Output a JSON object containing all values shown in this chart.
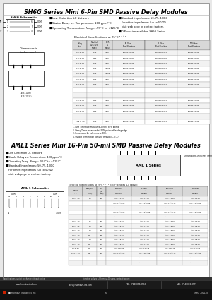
{
  "bg_color": "#ffffff",
  "title1": "SH6G Series Mini 6-Pin SMD Passive Delay Modules",
  "title2": "AML1 Series Mini 16-Pin 50-mil SMD Passive Delay Modules",
  "section1_bullets": [
    "Low Distortion LC Network",
    "Stable Delay vs. Temperature: 100 ppm/°C",
    "Operating Temperature Range: -55°C to +125°C"
  ],
  "section1_bullets2_line1": "Standard Impedances: 50, 75, 100 Ω",
  "section1_bullets2_line2": "For other impedances (up to 500Ω)",
  "section1_bullets2_line3": "visit web page or contact factory.",
  "section1_bullets2_line4": "DIP version available: SH6G Series",
  "section2_bullets": [
    "Low Distortion LC Network",
    "Stable Delay vs. Temperature: 100 ppm/°C",
    "Operating Temp. Range: -55°C to +125°C",
    "Standard Impedances: 50, 75, 100 Ω",
    "For other impedances (up to 500Ω)",
    "visit web page or contact factory."
  ],
  "sh6g_rows": [
    [
      "0.5 ± .20",
      "0.70",
      "<0.5",
      "SH6G2-01005",
      "SH6G2-01005T",
      "SH6G2-01005"
    ],
    [
      "1.0 ± .20",
      "0.80",
      "<0.5",
      "SH6G2-01010",
      "SH6G2-01010T",
      "SH6G2-01010"
    ],
    [
      "2.0 ± .20",
      "0.90",
      "<0.5",
      "SH6G2-02005",
      "SH6G2-02005T",
      "SH6G2-02005"
    ],
    [
      "2.5 ± .20",
      "1.00",
      "<0.60",
      "SH6G2-02505",
      "SH6G2-02505T",
      "SH6G2-02505"
    ],
    [
      "3.0 ± .30",
      "1.20",
      "<0.60",
      "SH6G2-03005",
      "SH6G2-03005T",
      "SH6G2-03005"
    ],
    [
      "4.0 ± .40",
      "1.50",
      "<4.5",
      "SH6G2-04005",
      "SH6G2-04005T",
      "SH6G2-04005"
    ],
    [
      "5.0 ± .40",
      "1.80",
      "<5.0",
      "SH6G2-07005",
      "SH6G2-07005T",
      "SH6G2-07005"
    ],
    [
      "6.0 ± .40",
      "2.00",
      "<5.5",
      "SH6G2-06005",
      "SH6G2-06005T",
      "SH6G2-06005"
    ],
    [
      "7.0 ± .40",
      "2.40",
      "<5.5",
      "SH6G2-07005",
      "SH6G2-07005T",
      "SH6G2-07005"
    ],
    [
      "7.5 ± .40",
      "2.60",
      "<6.8",
      "SH6G2-07505",
      "SH6G2-07505T",
      "SH6G2-07505"
    ],
    [
      "8.0 ± .40",
      "2.40",
      "<7.5",
      "SH6G2-08005",
      "SH6G2-08005T",
      "SH6G2-08005"
    ],
    [
      "9.0 ± .40",
      "2.80",
      "<7.5",
      "SH6G2-09005",
      "SH6G2-09005T",
      "SH6G2-09005"
    ],
    [
      "10.0 ± .40",
      "1.00",
      "<8.0",
      "SH6G2-10005",
      "SH6G2-10005T",
      "SH6G2-10005"
    ],
    [
      "12.5 ± .50",
      "2.10",
      "<8.5",
      "SH6G2-11005",
      "SH6G2-11005T",
      "SH6G2-11005"
    ]
  ],
  "aml1_rows": [
    [
      "1.0 ± .20",
      "1.0",
      "20",
      "AML 1-1-50",
      "AML 1-1-75",
      "AML 1-1-10",
      "AML 1-1-20"
    ],
    [
      "1.5 ± .20",
      "1.0",
      "30",
      "AML 1-1½S-50",
      "AML 1-1½S-75",
      "AML 1-1½S-10",
      "AML 1-1½S-20"
    ],
    [
      "2.0 ± .30",
      "1.0",
      "40",
      "AML 1-2-50",
      "AML 1-2-75",
      "AML 1-2-10",
      "AML 1-2-20"
    ],
    [
      "2.5 ± .20",
      "1.0",
      "50",
      "AML 1-2½S-50",
      "AML 1-2½S-75",
      "AML 1-2½S-10",
      "AML 1-2½S-20"
    ],
    [
      "3.0 ± .30",
      "1.7",
      "40",
      "AML 1-3-50",
      "AML 1-3-75",
      "AML 1-3-10",
      "AML 1-3-20"
    ],
    [
      "4.0 ± .30",
      "1.7",
      "70",
      "AML 1-4-50",
      "AML 1-4-75",
      "AML 1-4-10",
      "AML 1-4-20"
    ],
    [
      "5.0 ± .25",
      "1.8",
      "80",
      "AML 1-5-50",
      "AML 1-5-75",
      "AML 1-5-10",
      "AML 1-5-20"
    ],
    [
      "6.0 ± .30",
      "1.9",
      "80",
      "AML 1-6-50",
      "AML 1-6-75",
      "AML 1-6-10",
      "AML 1-6-20"
    ],
    [
      "7.0 ± .30",
      "2.2",
      "90",
      "AML 1-7-50",
      "AML 1-7-75",
      "AML 1-7-10",
      "AML 1-7-20"
    ],
    [
      "8.0 ± .30",
      "1.4",
      "100",
      "AML 1-8-50",
      "AML 1-8-75",
      "AML 1-8-10",
      "AML 1-8-20"
    ],
    [
      "9.0 ± .30",
      "2.5",
      "100",
      "AML 1-9-50",
      "AML 1-9-75",
      "AML 1-9-10",
      "AML 1-9-20"
    ],
    [
      "10 ± .30",
      "2.8",
      "130",
      "AML 1-10-50",
      "AML 1-10-75",
      "AML 1-10-10",
      "AML 1-10-20"
    ],
    [
      "12.5 ± .50",
      "3.1",
      "150",
      "AML 1-12½-50",
      "AML 1-12½-75",
      "AML 1-12½-10",
      "AML 1-12½-20"
    ],
    [
      "15 ± .75",
      "3.4",
      "170",
      "AML 1-15-50",
      "AML 1-15-75",
      "AML 1-15-10",
      "AML 1-15-20"
    ],
    [
      "20 ± 1.0",
      "4.1",
      "100",
      "AML 1-20-50",
      "AML 1-20-75",
      "AML 1-20-10",
      "AML 1-20-20"
    ]
  ],
  "footer_bg": "#1a1a1a",
  "footer_bar_bg": "#333333",
  "footer_website": "www.rhombus-ind.com",
  "footer_email": "sales@rhombus-ind.com",
  "footer_tel": "TEL: (714) 898-0963",
  "footer_fax": "FAX: (714) 896-0971",
  "footer_logo": "rhombus industries inc.",
  "footer_page": "6",
  "footer_partnum": "SH6G  2001-03",
  "spec_note": "Specifications subject to change without notice.",
  "part_other": "For other values & Rhombus Designs, contact factory."
}
